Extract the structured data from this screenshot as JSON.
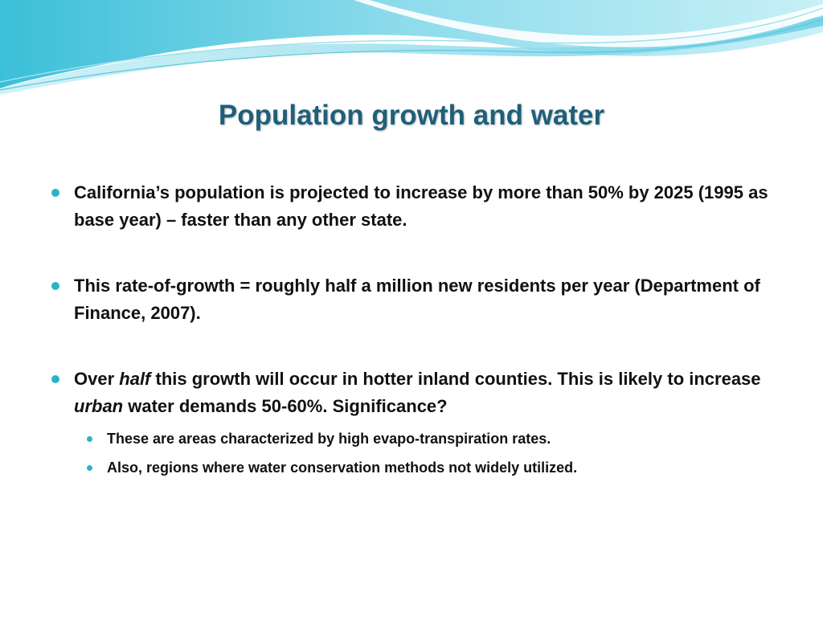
{
  "slide": {
    "title": "Population growth and water",
    "bullets": [
      {
        "text": "California’s population is projected to increase by more than 50% by 2025 (1995 as base year) – faster than any other state."
      },
      {
        "text": "This rate-of-growth = roughly half a million new residents per year (Department of Finance, 2007)."
      },
      {
        "part1": "Over ",
        "em1": "half",
        "part2": " this growth will occur in hotter inland counties.  This is likely to increase ",
        "em2": "urban",
        "part3": " water demands 50-60%. Significance?",
        "subbullets": [
          {
            "text": "These are areas characterized by high evapo-transpiration  rates."
          },
          {
            "text": "Also, regions where water conservation methods not widely utilized."
          }
        ]
      }
    ]
  },
  "colors": {
    "title": "#1f5f7a",
    "bullet": "#2ab3c6",
    "wave_light": "#bfeaf3",
    "wave_mid": "#6fd0e4",
    "wave_dark": "#2aa9c9"
  }
}
